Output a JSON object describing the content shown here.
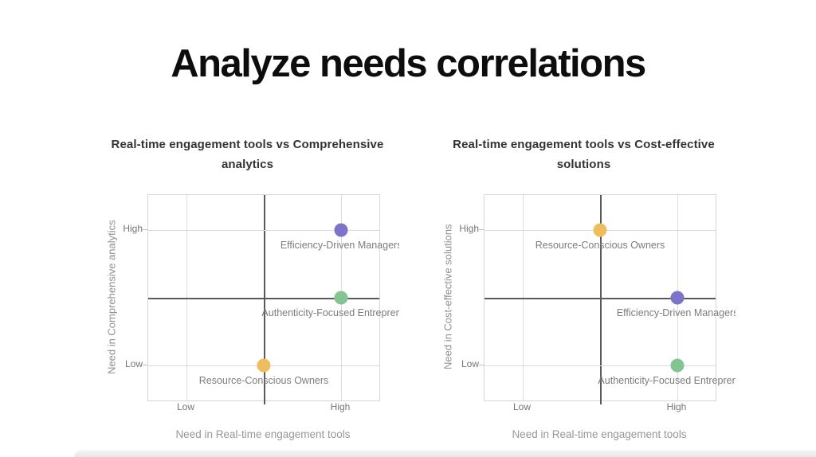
{
  "slide": {
    "title": "Analyze needs correlations"
  },
  "colors": {
    "purple": "#7b74c8",
    "green": "#83c493",
    "yellow": "#f0bd5e",
    "gridline": "#dcdcdc",
    "quadrant_divider": "#5a5a5a",
    "plot_border": "#d6d6d6",
    "title_text": "#0d0d0d",
    "chart_title_text": "#333333",
    "axis_text": "#757575",
    "label_text": "#7c7c7c"
  },
  "chart_data": [
    {
      "type": "scatter",
      "title": "Real-time engagement tools vs Comprehensive analytics",
      "xlabel": "Need in Real-time engagement tools",
      "ylabel": "Need in Comprehensive analytics",
      "x_ticks": [
        {
          "label": "Low",
          "pct": 16.5
        },
        {
          "label": "High",
          "pct": 83.5
        }
      ],
      "y_ticks": [
        {
          "label": "High",
          "pct": 17
        },
        {
          "label": "Low",
          "pct": 83
        }
      ],
      "grid": true,
      "legend": "none",
      "points": [
        {
          "label": "Efficiency-Driven Managers",
          "x_level": "High",
          "y_level": "High",
          "x_pct": 83.5,
          "y_pct": 17,
          "color": "#7b74c8"
        },
        {
          "label": "Authenticity-Focused Entrepreneurs",
          "x_level": "High",
          "y_level": "Medium",
          "x_pct": 83.5,
          "y_pct": 50,
          "color": "#83c493"
        },
        {
          "label": "Resource-Conscious Owners",
          "x_level": "Medium",
          "y_level": "Low",
          "x_pct": 50,
          "y_pct": 83,
          "color": "#f0bd5e"
        }
      ]
    },
    {
      "type": "scatter",
      "title": "Real-time engagement tools vs Cost-effective solutions",
      "xlabel": "Need in Real-time engagement tools",
      "ylabel": "Need in Cost-effective solutions",
      "x_ticks": [
        {
          "label": "Low",
          "pct": 16.5
        },
        {
          "label": "High",
          "pct": 83.5
        }
      ],
      "y_ticks": [
        {
          "label": "High",
          "pct": 17
        },
        {
          "label": "Low",
          "pct": 83
        }
      ],
      "grid": true,
      "legend": "none",
      "points": [
        {
          "label": "Resource-Conscious Owners",
          "x_level": "Medium",
          "y_level": "High",
          "x_pct": 50,
          "y_pct": 17,
          "color": "#f0bd5e"
        },
        {
          "label": "Efficiency-Driven Managers",
          "x_level": "High",
          "y_level": "Medium",
          "x_pct": 83.5,
          "y_pct": 50,
          "color": "#7b74c8"
        },
        {
          "label": "Authenticity-Focused Entrepreneurs",
          "x_level": "High",
          "y_level": "Low",
          "x_pct": 83.5,
          "y_pct": 83,
          "color": "#83c493"
        }
      ]
    }
  ]
}
